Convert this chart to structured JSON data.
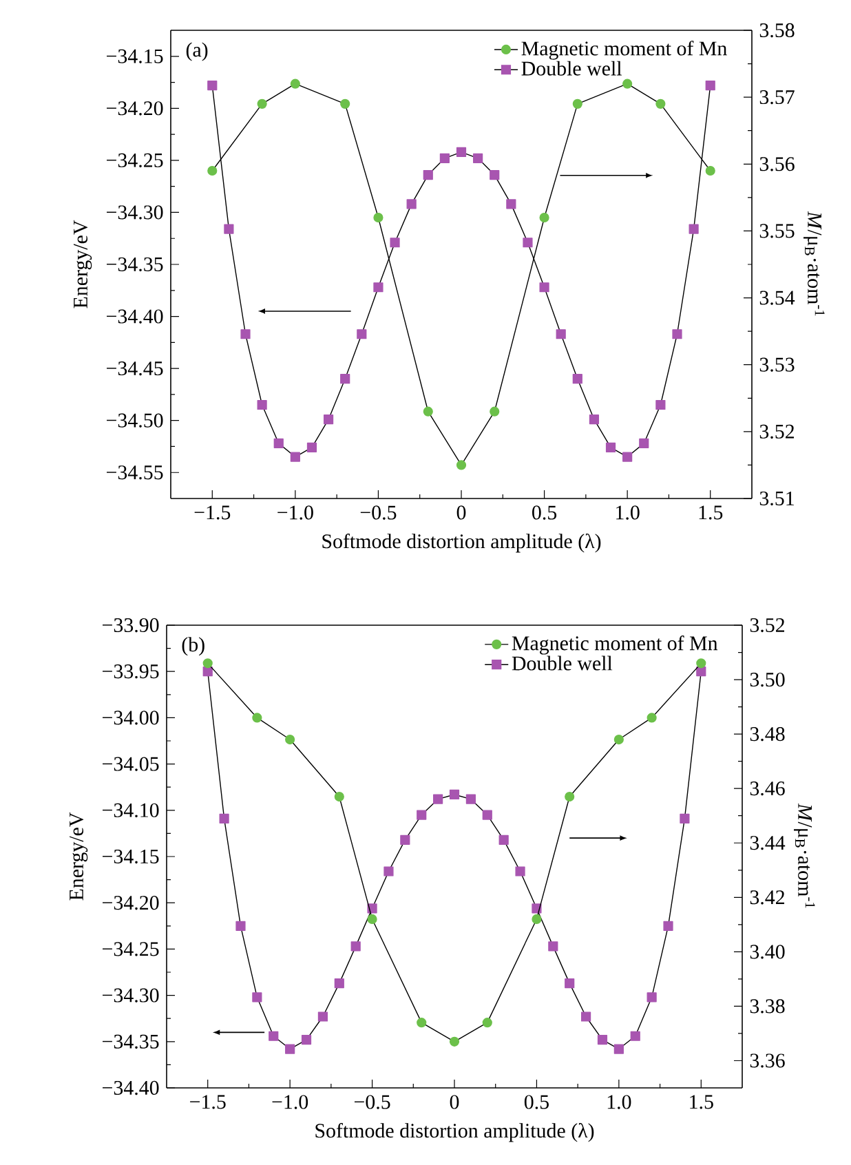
{
  "chart_data": [
    {
      "type": "line",
      "xlabel": "Softmode distortion amplitude (λ)",
      "ylabel": "Energy/eV",
      "y2label": "*M*/μ$_{B}$·atom$^{-1}$",
      "annotations": [
        "(a)"
      ],
      "legend": "top right",
      "grid": false,
      "xlim": [
        -1.75,
        1.75
      ],
      "xticks": [
        {
          "value": -1.5,
          "label": "−1.5"
        },
        {
          "value": -1.0,
          "label": "−1.0"
        },
        {
          "value": -0.5,
          "label": "−0.5"
        },
        {
          "value": 0,
          "label": "0"
        },
        {
          "value": 0.5,
          "label": "0.5"
        },
        {
          "value": 1.0,
          "label": "1.0"
        },
        {
          "value": 1.5,
          "label": "1.5"
        }
      ],
      "ylim": [
        -34.575,
        -34.125
      ],
      "yticks": [
        {
          "value": -34.55,
          "label": "−34.55"
        },
        {
          "value": -34.5,
          "label": "−34.50"
        },
        {
          "value": -34.45,
          "label": "−34.45"
        },
        {
          "value": -34.4,
          "label": "−34.40"
        },
        {
          "value": -34.35,
          "label": "−34.35"
        },
        {
          "value": -34.3,
          "label": "−34.30"
        },
        {
          "value": -34.25,
          "label": "−34.25"
        },
        {
          "value": -34.2,
          "label": "−34.20"
        },
        {
          "value": -34.15,
          "label": "−34.15"
        }
      ],
      "y2lim": [
        3.51,
        3.58
      ],
      "y2ticks": [
        {
          "value": 3.51,
          "label": "3.51"
        },
        {
          "value": 3.52,
          "label": "3.52"
        },
        {
          "value": 3.53,
          "label": "3.53"
        },
        {
          "value": 3.54,
          "label": "3.54"
        },
        {
          "value": 3.55,
          "label": "3.55"
        },
        {
          "value": 3.56,
          "label": "3.56"
        },
        {
          "value": 3.57,
          "label": "3.57"
        },
        {
          "value": 3.58,
          "label": "3.58"
        }
      ],
      "series": [
        {
          "name": "Magnetic moment of Mn",
          "color": "#6cc04a",
          "marker": "circle",
          "axis": "y2",
          "x": [
            -1.5,
            -1.2,
            -1.0,
            -0.7,
            -0.5,
            -0.2,
            0,
            0.2,
            0.5,
            0.7,
            1.0,
            1.2,
            1.5
          ],
          "values": [
            3.559,
            3.569,
            3.572,
            3.569,
            3.552,
            3.523,
            3.515,
            3.523,
            3.552,
            3.569,
            3.572,
            3.569,
            3.559
          ]
        },
        {
          "name": "Double well",
          "color": "#a855b0",
          "marker": "square",
          "x": [
            -1.5,
            -1.4,
            -1.3,
            -1.2,
            -1.1,
            -1.0,
            -0.9,
            -0.8,
            -0.7,
            -0.6,
            -0.5,
            -0.4,
            -0.3,
            -0.2,
            -0.1,
            0,
            0.1,
            0.2,
            0.3,
            0.4,
            0.5,
            0.6,
            0.7,
            0.8,
            0.9,
            1.0,
            1.1,
            1.2,
            1.3,
            1.4,
            1.5
          ],
          "values": [
            -34.178,
            -34.316,
            -34.417,
            -34.485,
            -34.522,
            -34.535,
            -34.526,
            -34.499,
            -34.46,
            -34.417,
            -34.372,
            -34.329,
            -34.292,
            -34.264,
            -34.248,
            -34.242,
            -34.248,
            -34.264,
            -34.292,
            -34.329,
            -34.372,
            -34.417,
            -34.46,
            -34.499,
            -34.526,
            -34.535,
            -34.522,
            -34.485,
            -34.417,
            -34.316,
            -34.178
          ]
        }
      ]
    },
    {
      "type": "line",
      "xlabel": "Softmode distortion amplitude (λ)",
      "ylabel": "Energy/eV",
      "y2label": "*M*/μ$_{B}$·atom$^{-1}$",
      "annotations": [
        "(b)"
      ],
      "legend": "top right",
      "grid": false,
      "xlim": [
        -1.75,
        1.75
      ],
      "xticks": [
        {
          "value": -1.5,
          "label": "−1.5"
        },
        {
          "value": -1.0,
          "label": "−1.0"
        },
        {
          "value": -0.5,
          "label": "−0.5"
        },
        {
          "value": 0,
          "label": "0"
        },
        {
          "value": 0.5,
          "label": "0.5"
        },
        {
          "value": 1.0,
          "label": "1.0"
        },
        {
          "value": 1.5,
          "label": "1.5"
        }
      ],
      "ylim": [
        -34.4,
        -33.9
      ],
      "yticks": [
        {
          "value": -34.4,
          "label": "−34.40"
        },
        {
          "value": -34.35,
          "label": "−34.35"
        },
        {
          "value": -34.3,
          "label": "−34.30"
        },
        {
          "value": -34.25,
          "label": "−34.25"
        },
        {
          "value": -34.2,
          "label": "−34.20"
        },
        {
          "value": -34.15,
          "label": "−34.15"
        },
        {
          "value": -34.1,
          "label": "−34.10"
        },
        {
          "value": -34.05,
          "label": "−34.05"
        },
        {
          "value": -34.0,
          "label": "−34.00"
        },
        {
          "value": -33.95,
          "label": "−33.95"
        },
        {
          "value": -33.9,
          "label": "−33.90"
        }
      ],
      "y2lim": [
        3.35,
        3.52
      ],
      "y2ticks": [
        {
          "value": 3.36,
          "label": "3.36"
        },
        {
          "value": 3.38,
          "label": "3.38"
        },
        {
          "value": 3.4,
          "label": "3.40"
        },
        {
          "value": 3.42,
          "label": "3.42"
        },
        {
          "value": 3.44,
          "label": "3.44"
        },
        {
          "value": 3.46,
          "label": "3.46"
        },
        {
          "value": 3.48,
          "label": "3.48"
        },
        {
          "value": 3.5,
          "label": "3.50"
        },
        {
          "value": 3.52,
          "label": "3.52"
        }
      ],
      "series": [
        {
          "name": "Magnetic moment of Mn",
          "color": "#6cc04a",
          "marker": "circle",
          "axis": "y2",
          "x": [
            -1.5,
            -1.2,
            -1.0,
            -0.7,
            -0.5,
            -0.2,
            0,
            0.2,
            0.5,
            0.7,
            1.0,
            1.2,
            1.5
          ],
          "values": [
            3.506,
            3.486,
            3.478,
            3.457,
            3.412,
            3.374,
            3.367,
            3.374,
            3.412,
            3.457,
            3.478,
            3.486,
            3.506
          ]
        },
        {
          "name": "Double well",
          "color": "#a855b0",
          "marker": "square",
          "x": [
            -1.5,
            -1.4,
            -1.3,
            -1.2,
            -1.1,
            -1.0,
            -0.9,
            -0.8,
            -0.7,
            -0.6,
            -0.5,
            -0.4,
            -0.3,
            -0.2,
            -0.1,
            0,
            0.1,
            0.2,
            0.3,
            0.4,
            0.5,
            0.6,
            0.7,
            0.8,
            0.9,
            1.0,
            1.1,
            1.2,
            1.3,
            1.4,
            1.5
          ],
          "values": [
            -33.95,
            -34.109,
            -34.225,
            -34.302,
            -34.344,
            -34.358,
            -34.348,
            -34.323,
            -34.287,
            -34.247,
            -34.206,
            -34.166,
            -34.132,
            -34.105,
            -34.088,
            -34.083,
            -34.088,
            -34.105,
            -34.132,
            -34.166,
            -34.206,
            -34.247,
            -34.287,
            -34.323,
            -34.348,
            -34.358,
            -34.344,
            -34.302,
            -34.225,
            -34.109,
            -33.95
          ]
        }
      ]
    }
  ]
}
